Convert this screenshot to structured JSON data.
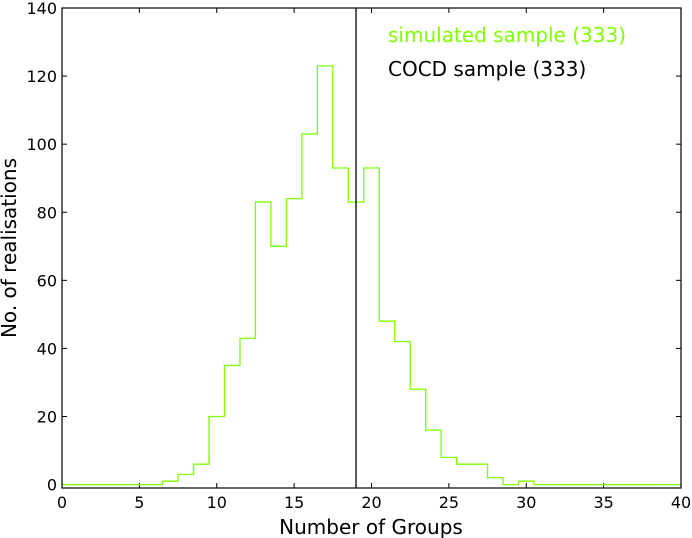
{
  "chart_data": {
    "type": "histogram-step",
    "xlabel": "Number of Groups",
    "ylabel": "No. of realisations",
    "xlim": [
      0,
      40
    ],
    "ylim": [
      -1,
      140
    ],
    "xticks": [
      0,
      5,
      10,
      15,
      20,
      25,
      30,
      35,
      40
    ],
    "yticks": [
      0,
      20,
      40,
      60,
      80,
      100,
      120,
      140
    ],
    "grid": false,
    "legend_placement": "top-right",
    "series": [
      {
        "name": "simulated sample (333)",
        "color": "#7fff00",
        "bin_edges": [
          0,
          0.5,
          1.5,
          2.5,
          3.5,
          4.5,
          5.5,
          6.5,
          7.5,
          8.5,
          9.5,
          10.5,
          11.5,
          12.5,
          13.5,
          14.5,
          15.5,
          16.5,
          17.5,
          18.5,
          19.5,
          20.5,
          21.5,
          22.5,
          23.5,
          24.5,
          25.5,
          26.5,
          27.5,
          28.5,
          29.5,
          30.5,
          31.5,
          32.5,
          33.5,
          34.5,
          35.5,
          36.5,
          37.5,
          38.5,
          39.5,
          40
        ],
        "counts": [
          0,
          0,
          0,
          0,
          0,
          0,
          0,
          1,
          3,
          6,
          20,
          35,
          43,
          83,
          70,
          84,
          103,
          123,
          93,
          83,
          93,
          48,
          42,
          28,
          16,
          8,
          6,
          6,
          2,
          0,
          1,
          0,
          0,
          0,
          0,
          0,
          0,
          0,
          0,
          0,
          0
        ]
      }
    ],
    "reference_line": {
      "name": "COCD sample (333)",
      "x": 19,
      "color": "#000000"
    }
  }
}
